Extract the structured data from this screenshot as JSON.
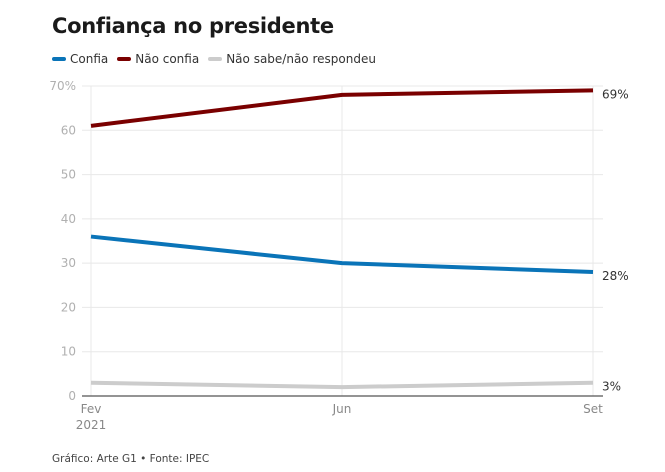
{
  "chart_data": {
    "type": "line",
    "title": "Confiança no presidente",
    "xlabel": "",
    "ylabel": "",
    "x": [
      "Fev\n2021",
      "Jun",
      "Set"
    ],
    "x_ticks": [
      {
        "line1": "Fev",
        "line2": "2021"
      },
      {
        "line1": "Jun",
        "line2": ""
      },
      {
        "line1": "Set",
        "line2": ""
      }
    ],
    "ylim": [
      0,
      70
    ],
    "y_ticks": [
      "0",
      "10",
      "20",
      "30",
      "40",
      "50",
      "60",
      "70%"
    ],
    "y_tick_values": [
      0,
      10,
      20,
      30,
      40,
      50,
      60,
      70
    ],
    "grid": true,
    "legend_position": "top-left",
    "series": [
      {
        "name": "Confia",
        "color": "#0a74b8",
        "values": [
          36,
          30,
          28
        ],
        "end_label": "28%"
      },
      {
        "name": "Não confia",
        "color": "#7a0000",
        "values": [
          61,
          68,
          69
        ],
        "end_label": "69%"
      },
      {
        "name": "Não sabe/não respondeu",
        "color": "#cccccc",
        "values": [
          3,
          2,
          3
        ],
        "end_label": "3%"
      }
    ]
  },
  "source": "Gráfico: Arte G1 • Fonte: IPEC"
}
